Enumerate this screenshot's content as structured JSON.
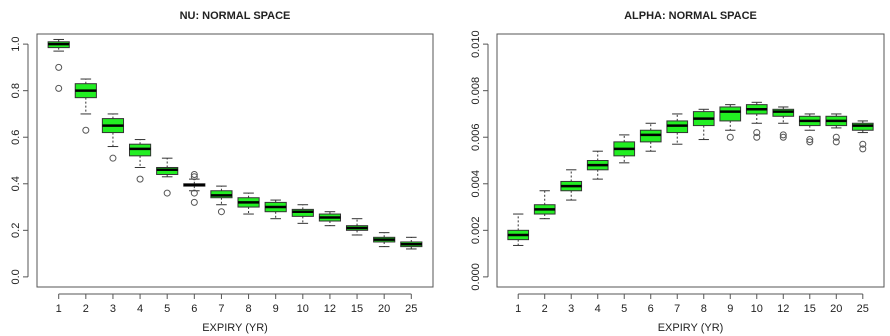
{
  "chart_data": [
    {
      "type": "boxplot",
      "title": "NU: NORMAL SPACE",
      "xlabel": "EXPIRY (YR)",
      "ylabel": "",
      "categories": [
        "1",
        "2",
        "3",
        "4",
        "5",
        "6",
        "7",
        "8",
        "9",
        "10",
        "12",
        "15",
        "20",
        "25"
      ],
      "ylim": [
        0.0,
        1.0
      ],
      "yticks": [
        "0.0",
        "0.2",
        "0.4",
        "0.6",
        "0.8",
        "1.0"
      ],
      "ytick_values": [
        0.0,
        0.2,
        0.4,
        0.6,
        0.8,
        1.0
      ],
      "box_color": "#22ee22",
      "boxes": [
        {
          "min": 0.97,
          "q1": 0.985,
          "median": 1.0,
          "q3": 1.01,
          "max": 1.02,
          "outliers": [
            0.9,
            0.81
          ]
        },
        {
          "min": 0.7,
          "q1": 0.77,
          "median": 0.8,
          "q3": 0.83,
          "max": 0.85,
          "outliers": [
            0.63
          ]
        },
        {
          "min": 0.56,
          "q1": 0.62,
          "median": 0.65,
          "q3": 0.68,
          "max": 0.7,
          "outliers": [
            0.51
          ]
        },
        {
          "min": 0.47,
          "q1": 0.52,
          "median": 0.55,
          "q3": 0.57,
          "max": 0.59,
          "outliers": [
            0.42
          ]
        },
        {
          "min": 0.43,
          "q1": 0.44,
          "median": 0.46,
          "q3": 0.47,
          "max": 0.51,
          "outliers": [
            0.36
          ]
        },
        {
          "min": 0.37,
          "q1": 0.39,
          "median": 0.395,
          "q3": 0.4,
          "max": 0.42,
          "outliers": [
            0.44,
            0.43,
            0.36,
            0.32
          ]
        },
        {
          "min": 0.31,
          "q1": 0.34,
          "median": 0.35,
          "q3": 0.37,
          "max": 0.39,
          "outliers": [
            0.28
          ]
        },
        {
          "min": 0.27,
          "q1": 0.3,
          "median": 0.32,
          "q3": 0.34,
          "max": 0.36,
          "outliers": []
        },
        {
          "min": 0.25,
          "q1": 0.28,
          "median": 0.3,
          "q3": 0.32,
          "max": 0.33,
          "outliers": []
        },
        {
          "min": 0.23,
          "q1": 0.26,
          "median": 0.28,
          "q3": 0.29,
          "max": 0.31,
          "outliers": []
        },
        {
          "min": 0.22,
          "q1": 0.24,
          "median": 0.255,
          "q3": 0.27,
          "max": 0.28,
          "outliers": []
        },
        {
          "min": 0.18,
          "q1": 0.2,
          "median": 0.21,
          "q3": 0.22,
          "max": 0.25,
          "outliers": []
        },
        {
          "min": 0.13,
          "q1": 0.15,
          "median": 0.16,
          "q3": 0.17,
          "max": 0.19,
          "outliers": []
        },
        {
          "min": 0.12,
          "q1": 0.13,
          "median": 0.14,
          "q3": 0.15,
          "max": 0.17,
          "outliers": []
        }
      ]
    },
    {
      "type": "boxplot",
      "title": "ALPHA: NORMAL SPACE",
      "xlabel": "EXPIRY (YR)",
      "ylabel": "",
      "categories": [
        "1",
        "2",
        "3",
        "4",
        "5",
        "6",
        "7",
        "8",
        "9",
        "10",
        "12",
        "15",
        "20",
        "25"
      ],
      "ylim": [
        0.0,
        0.01
      ],
      "yticks": [
        "0.000",
        "0.002",
        "0.004",
        "0.006",
        "0.008",
        "0.010"
      ],
      "ytick_values": [
        0.0,
        0.002,
        0.004,
        0.006,
        0.008,
        0.01
      ],
      "box_color": "#22ee22",
      "boxes": [
        {
          "min": 0.00135,
          "q1": 0.0016,
          "median": 0.0018,
          "q3": 0.002,
          "max": 0.0027,
          "outliers": []
        },
        {
          "min": 0.0025,
          "q1": 0.0027,
          "median": 0.0029,
          "q3": 0.0031,
          "max": 0.0037,
          "outliers": []
        },
        {
          "min": 0.0033,
          "q1": 0.0037,
          "median": 0.0039,
          "q3": 0.0041,
          "max": 0.0046,
          "outliers": []
        },
        {
          "min": 0.0042,
          "q1": 0.0046,
          "median": 0.0048,
          "q3": 0.005,
          "max": 0.0054,
          "outliers": []
        },
        {
          "min": 0.0049,
          "q1": 0.0052,
          "median": 0.0055,
          "q3": 0.0058,
          "max": 0.0061,
          "outliers": []
        },
        {
          "min": 0.0054,
          "q1": 0.0058,
          "median": 0.0061,
          "q3": 0.0063,
          "max": 0.0066,
          "outliers": []
        },
        {
          "min": 0.0057,
          "q1": 0.0062,
          "median": 0.0065,
          "q3": 0.0067,
          "max": 0.007,
          "outliers": []
        },
        {
          "min": 0.0059,
          "q1": 0.0065,
          "median": 0.0068,
          "q3": 0.0071,
          "max": 0.0072,
          "outliers": []
        },
        {
          "min": 0.0063,
          "q1": 0.0067,
          "median": 0.0071,
          "q3": 0.0073,
          "max": 0.0074,
          "outliers": [
            0.006
          ]
        },
        {
          "min": 0.0066,
          "q1": 0.007,
          "median": 0.0072,
          "q3": 0.0074,
          "max": 0.0075,
          "outliers": [
            0.0062,
            0.006
          ]
        },
        {
          "min": 0.0066,
          "q1": 0.0069,
          "median": 0.0071,
          "q3": 0.0072,
          "max": 0.0073,
          "outliers": [
            0.0061,
            0.006
          ]
        },
        {
          "min": 0.0063,
          "q1": 0.0065,
          "median": 0.0067,
          "q3": 0.0069,
          "max": 0.007,
          "outliers": [
            0.0059,
            0.0058
          ]
        },
        {
          "min": 0.0064,
          "q1": 0.0065,
          "median": 0.0067,
          "q3": 0.0069,
          "max": 0.007,
          "outliers": [
            0.006,
            0.0058
          ]
        },
        {
          "min": 0.0062,
          "q1": 0.0063,
          "median": 0.0065,
          "q3": 0.0066,
          "max": 0.0067,
          "outliers": [
            0.0057,
            0.0055
          ]
        }
      ]
    }
  ]
}
